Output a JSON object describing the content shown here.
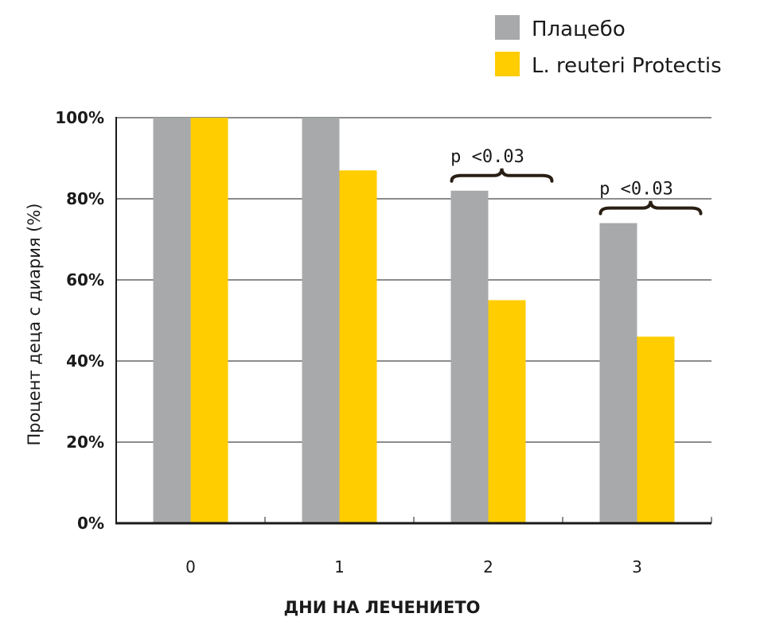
{
  "chart_data": {
    "type": "bar",
    "categories": [
      "0",
      "1",
      "2",
      "3"
    ],
    "series": [
      {
        "name": "Плацебо",
        "color": "#a7a9ab",
        "values": [
          100,
          100,
          82,
          74
        ]
      },
      {
        "name": "L. reuteri Protectis",
        "color": "#ffcd00",
        "values": [
          100,
          87,
          55,
          46
        ]
      }
    ],
    "xlabel": "ДНИ НА ЛЕЧЕНИЕТО",
    "ylabel": "Процент деца с диария (%)",
    "ylim": [
      0,
      100
    ],
    "yticks": [
      {
        "value": 0,
        "label": "0%"
      },
      {
        "value": 20,
        "label": "20%"
      },
      {
        "value": 40,
        "label": "40%"
      },
      {
        "value": 60,
        "label": "60%"
      },
      {
        "value": 80,
        "label": "80%"
      },
      {
        "value": 100,
        "label": "100%"
      }
    ],
    "grid": true,
    "legend": "top-right",
    "annotations": [
      {
        "category": "2",
        "text": "p <0.03"
      },
      {
        "category": "3",
        "text": "p <0.03"
      }
    ]
  }
}
